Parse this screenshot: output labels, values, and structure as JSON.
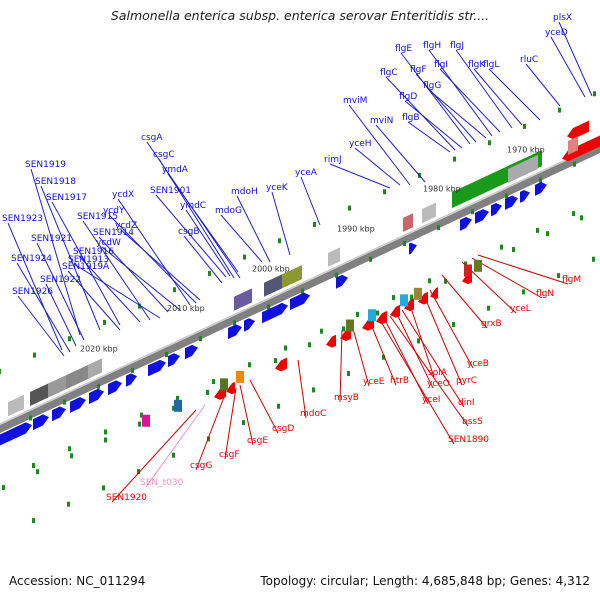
{
  "title": "Salmonella enterica subsp. enterica serovar Enteritidis str....",
  "accession": "Accession: NC_011294",
  "topology": "Topology: circular; Length: 4,685,848 bp; Genes: 4,312",
  "colors": {
    "forward_genes": "#1010e0",
    "reverse_genes": "#ee0000",
    "ticks": "#1a8a1a",
    "backbone": "#808080",
    "blue_label_lines": "#2020d0",
    "red_label_lines": "#d00000",
    "pseudo_label": "#f090c0"
  },
  "scale_labels": [
    "1970 kbp",
    "1980 kbp",
    "1990 kbp",
    "2000 kbp",
    "2010 kbp",
    "2020 kbp"
  ],
  "top_gene_labels": [
    "plsX",
    "yceD",
    "rluC",
    "flgL",
    "flgK",
    "flgJ",
    "flgI",
    "flgH",
    "flgG",
    "flgF",
    "flgE",
    "flgD",
    "flgC",
    "flgB",
    "mviN",
    "mviM",
    "yceH",
    "rimJ",
    "yceA",
    "yceK",
    "mdoH",
    "mdoG",
    "csgB",
    "ymdC",
    "SEN1901",
    "ymdA",
    "csgC",
    "csgA",
    "ycdZ",
    "ycdY",
    "ycdX",
    "ycdW",
    "SEN1913",
    "SEN1914",
    "SEN1915",
    "SEN1916",
    "SEN1917",
    "SEN1918",
    "SEN1919",
    "SEN1919A",
    "SEN1921",
    "SEN1922",
    "SEN1923",
    "SEN1924",
    "SEN1926"
  ],
  "bottom_gene_labels": [
    "flgM",
    "flgN",
    "yceL",
    "grxB",
    "yceB",
    "pyrC",
    "solA",
    "dinI",
    "yceO",
    "bssS",
    "yceI",
    "SEN1890",
    "htrB",
    "yceE",
    "msyB",
    "mdoC",
    "csgD",
    "csgE",
    "csgF",
    "csgG",
    "SEN_t030",
    "SEN1920"
  ]
}
